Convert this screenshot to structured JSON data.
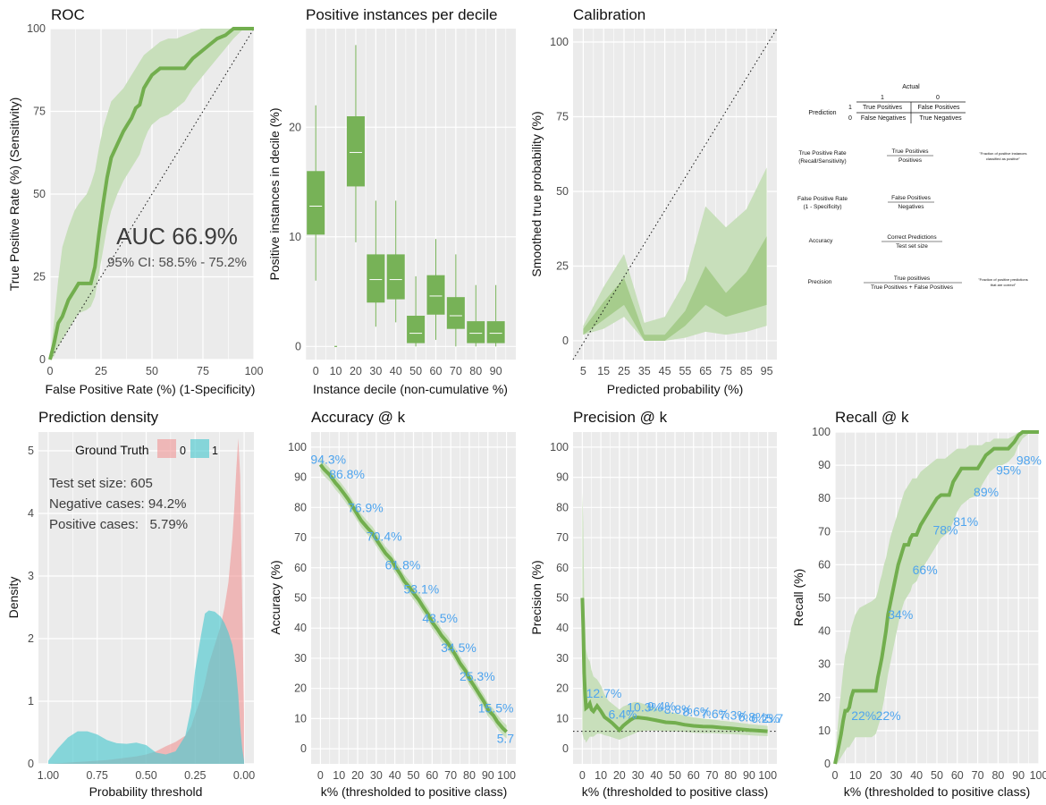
{
  "colors": {
    "panel": "#ebebeb",
    "grid": "#ffffff",
    "line": "#72ae4e",
    "band": "#c8dfbb",
    "band2": "#a6cc8c",
    "box": "#77b257",
    "label": "#4ea4ee",
    "neg": "#f08d8d",
    "pos": "#4ec9cf"
  },
  "roc": {
    "title": "ROC",
    "xlabel": "False Positive Rate (%)     (1-Specificity)",
    "ylabel": "True Positive Rate (%)     (Sensitivity)",
    "auc_text": "AUC 66.9%",
    "ci_text": "95% CI: 58.5% - 75.2%",
    "xticks": [
      "0",
      "25",
      "50",
      "75",
      "100"
    ],
    "yticks": [
      "0",
      "25",
      "50",
      "75",
      "100"
    ],
    "chart_data": {
      "type": "line",
      "x": [
        0,
        2,
        4,
        6,
        9,
        12,
        14,
        18,
        20,
        22,
        24,
        26,
        28,
        30,
        33,
        36,
        38,
        40,
        42,
        44,
        46,
        48,
        50,
        54,
        58,
        62,
        66,
        70,
        74,
        78,
        82,
        86,
        90,
        95,
        100
      ],
      "y": [
        0,
        5,
        11,
        13,
        18,
        21,
        23,
        23,
        23,
        28,
        38,
        47,
        55,
        61,
        65,
        69,
        71,
        73,
        76,
        77,
        82,
        84,
        86,
        88,
        88,
        88,
        88,
        91,
        93,
        95,
        97,
        98,
        100,
        100,
        100
      ],
      "upper": [
        0,
        12,
        24,
        34,
        40,
        45,
        47,
        50,
        53,
        57,
        64,
        70,
        74,
        78,
        80,
        82,
        84,
        86,
        88,
        90,
        92,
        93,
        94,
        96,
        97,
        97,
        98,
        99,
        100,
        100,
        100,
        100,
        100,
        100,
        100
      ],
      "lower": [
        0,
        1,
        4,
        6,
        9,
        12,
        14,
        15,
        16,
        19,
        26,
        33,
        40,
        45,
        50,
        54,
        56,
        58,
        60,
        62,
        66,
        69,
        71,
        73,
        74,
        76,
        78,
        82,
        85,
        88,
        91,
        94,
        97,
        100,
        100
      ]
    }
  },
  "decile": {
    "title": "Positive instances per decile",
    "xlabel": "Instance decile (non-cumulative %)",
    "ylabel": "Positive instances in decile (%)",
    "xticks": [
      "0",
      "10",
      "20",
      "30",
      "40",
      "50",
      "60",
      "70",
      "80",
      "90"
    ],
    "yticks": [
      "0",
      "10",
      "20"
    ],
    "chart_data": {
      "type": "box",
      "categories": [
        "0",
        "10",
        "20",
        "30",
        "40",
        "50",
        "60",
        "70",
        "80",
        "90"
      ],
      "median": [
        12.8,
        0,
        17.7,
        6.1,
        6.1,
        1.2,
        4.6,
        2.8,
        1.2,
        1.2
      ],
      "q1": [
        10.2,
        0,
        14.6,
        4.0,
        4.3,
        0.3,
        2.9,
        1.6,
        0.3,
        0.3
      ],
      "q3": [
        16.0,
        0,
        21.0,
        8.4,
        8.4,
        2.8,
        6.5,
        4.5,
        2.3,
        2.3
      ],
      "lo": [
        6.0,
        0,
        9.5,
        1.8,
        2.2,
        0,
        0.6,
        0,
        0,
        0
      ],
      "hi": [
        22.0,
        0,
        27.5,
        13.3,
        13.3,
        6.4,
        9.8,
        8.4,
        5.6,
        5.6
      ]
    }
  },
  "calibration": {
    "title": "Calibration",
    "xlabel": "Predicted probability (%)",
    "ylabel": "Smoothed true probability (%)",
    "xticks": [
      "5",
      "15",
      "25",
      "35",
      "45",
      "55",
      "65",
      "75",
      "85",
      "95"
    ],
    "yticks": [
      "0",
      "25",
      "50",
      "75",
      "100"
    ],
    "chart_data": {
      "type": "area",
      "x": [
        5,
        15,
        25,
        35,
        45,
        55,
        65,
        75,
        85,
        95
      ],
      "outer_lo": [
        2,
        4,
        8,
        0,
        0,
        1,
        3,
        2,
        3,
        5
      ],
      "outer_hi": [
        5,
        18,
        29,
        6,
        8,
        20,
        45,
        38,
        44,
        58
      ],
      "inner_lo": [
        2,
        7,
        12,
        0,
        0,
        5,
        12,
        8,
        10,
        12
      ],
      "inner_hi": [
        4,
        13,
        21,
        2,
        2,
        10,
        25,
        16,
        23,
        35
      ]
    }
  },
  "table": {
    "actual": "Actual",
    "h1": "1",
    "h0": "0",
    "prediction": "Prediction",
    "r1": "1",
    "r0": "0",
    "tp": "True Positives",
    "fp": "False Positives",
    "fn": "False Negatives",
    "tn": "True Negatives",
    "tpr_label1": "True Positive Rate",
    "tpr_label2": "(Recall/Sensitivity)",
    "tpr_num": "True Positives",
    "tpr_den": "Positives",
    "tpr_note1": "\"Fraction of positive instances",
    "tpr_note2": "classified as positive\"",
    "fpr_label1": "False Positive Rate",
    "fpr_label2": "(1 - Specificity)",
    "fpr_num": "False Positives",
    "fpr_den": "Negatives",
    "acc_label": "Accuracy",
    "acc_num": "Correct Predictions",
    "acc_den": "Test set size",
    "prec_label": "Precision",
    "prec_num": "True positives",
    "prec_den": "True Positives + False Positives",
    "prec_note1": "\"Fraction of positive predictions",
    "prec_note2": "that are correct\""
  },
  "density": {
    "title": "Prediction density",
    "xlabel": "Probability threshold",
    "ylabel": "Density",
    "legend_title": "Ground Truth",
    "legend_0": "0",
    "legend_1": "1",
    "stat1": "Test set size: 605",
    "stat2": "Negative cases: 94.2%",
    "stat3": "Positive cases:   5.79%",
    "xticks": [
      "1.00",
      "0.75",
      "0.50",
      "0.25",
      "0.00"
    ],
    "yticks": [
      "0",
      "1",
      "2",
      "3",
      "4",
      "5"
    ],
    "chart_data": {
      "type": "area",
      "x": [
        1.0,
        0.95,
        0.9,
        0.85,
        0.8,
        0.75,
        0.7,
        0.65,
        0.6,
        0.55,
        0.5,
        0.45,
        0.4,
        0.35,
        0.3,
        0.27,
        0.25,
        0.22,
        0.2,
        0.18,
        0.15,
        0.12,
        0.1,
        0.08,
        0.06,
        0.05,
        0.04,
        0.03,
        0.02,
        0.01,
        0.0
      ],
      "neg": [
        0,
        0.01,
        0.02,
        0.03,
        0.04,
        0.05,
        0.06,
        0.08,
        0.1,
        0.12,
        0.15,
        0.2,
        0.28,
        0.35,
        0.45,
        0.6,
        0.8,
        1.05,
        1.3,
        1.6,
        1.9,
        2.2,
        2.5,
        2.9,
        3.6,
        4.1,
        4.7,
        5.2,
        4.6,
        2.6,
        0.8
      ],
      "pos": [
        0.05,
        0.25,
        0.42,
        0.52,
        0.52,
        0.47,
        0.38,
        0.33,
        0.32,
        0.34,
        0.3,
        0.18,
        0.15,
        0.2,
        0.45,
        0.9,
        1.5,
        2.05,
        2.4,
        2.45,
        2.43,
        2.35,
        2.25,
        2.1,
        1.9,
        1.7,
        1.45,
        1.1,
        0.6,
        0.25,
        0.05
      ]
    }
  },
  "accuracy": {
    "title": "Accuracy @ k",
    "xlabel": "k% (thresholded to positive class)",
    "ylabel": "Accuracy (%)",
    "xticks": [
      "0",
      "10",
      "20",
      "30",
      "40",
      "50",
      "60",
      "70",
      "80",
      "90",
      "100"
    ],
    "yticks": [
      "0",
      "10",
      "20",
      "30",
      "40",
      "50",
      "60",
      "70",
      "80",
      "90",
      "100"
    ],
    "labels": [
      "94.3%",
      "86.8%",
      "76.9%",
      "70.4%",
      "61.8%",
      "53.1%",
      "43.5%",
      "34.5%",
      "25.3%",
      "15.5%",
      "5.7"
    ],
    "chart_data": {
      "type": "line",
      "x": [
        0,
        2,
        5,
        8,
        10,
        13,
        15,
        18,
        20,
        22,
        25,
        28,
        30,
        33,
        35,
        38,
        40,
        43,
        45,
        48,
        50,
        53,
        55,
        58,
        60,
        63,
        65,
        68,
        70,
        73,
        75,
        78,
        80,
        83,
        85,
        88,
        90,
        93,
        95,
        98,
        100
      ],
      "y": [
        94.2,
        92.6,
        90.8,
        88.2,
        86.8,
        84.3,
        82.6,
        79.6,
        77.6,
        75.6,
        73.4,
        71.4,
        69.4,
        66.6,
        64.8,
        62.8,
        60.6,
        57.8,
        55.6,
        53.4,
        51.6,
        49.2,
        47.2,
        44.4,
        42.0,
        39.5,
        37.6,
        35.4,
        33.6,
        30.6,
        28.4,
        25.8,
        23.2,
        20.4,
        18.4,
        15.5,
        13.0,
        11.0,
        9.0,
        6.8,
        5.6
      ]
    }
  },
  "precision": {
    "title": "Precision @ k",
    "xlabel": "k% (thresholded to positive class)",
    "ylabel": "Precision (%)",
    "xticks": [
      "0",
      "10",
      "20",
      "30",
      "40",
      "50",
      "60",
      "70",
      "80",
      "90",
      "100"
    ],
    "yticks": [
      "0",
      "10",
      "20",
      "30",
      "40",
      "50",
      "60",
      "70",
      "80",
      "90",
      "100"
    ],
    "labels": [
      "12.7%",
      "6.4%",
      "10.3%",
      "9.4%",
      "8.8%",
      "8.6%",
      "7.6%",
      "7.3%",
      "6.8%",
      "6.2%",
      "5.7"
    ],
    "chart_data": {
      "type": "line",
      "x": [
        0,
        0.5,
        1,
        1.5,
        2,
        3,
        4,
        5,
        6,
        8,
        10,
        12,
        14,
        16,
        18,
        20,
        22,
        24,
        26,
        28,
        30,
        35,
        40,
        45,
        50,
        55,
        60,
        65,
        70,
        75,
        80,
        85,
        90,
        95,
        100
      ],
      "y": [
        50,
        40,
        25,
        18,
        13.5,
        14,
        15,
        13,
        12.4,
        14.2,
        12.5,
        10.5,
        9.6,
        8.6,
        7.4,
        6.2,
        7.6,
        8.6,
        9.6,
        10.3,
        10.4,
        10.0,
        9.4,
        8.8,
        8.6,
        8.0,
        7.6,
        7.4,
        7.3,
        7.0,
        6.8,
        6.5,
        6.2,
        6.0,
        5.8
      ],
      "upper": [
        85,
        75,
        50,
        40,
        33,
        30,
        29,
        26,
        24,
        23,
        21,
        18,
        16,
        15,
        14,
        13,
        14,
        14.5,
        15,
        15.5,
        15.5,
        14.5,
        13.4,
        12.4,
        11.8,
        11.0,
        10.4,
        10.0,
        9.7,
        9.3,
        9.0,
        8.6,
        8.2,
        7.9,
        7.6
      ],
      "lower": [
        5,
        4,
        3,
        3,
        2,
        3,
        4,
        4,
        4,
        5,
        5,
        4.5,
        4.2,
        3.8,
        3.4,
        3.0,
        3.5,
        4.0,
        4.5,
        5.0,
        5.6,
        6.0,
        6.0,
        5.8,
        5.8,
        5.6,
        5.3,
        5.2,
        5.2,
        5.0,
        4.9,
        4.7,
        4.5,
        4.3,
        4.2
      ],
      "baseline": 5.79
    }
  },
  "recall": {
    "title": "Recall @ k",
    "xlabel": "k% (thresholded to positive class)",
    "ylabel": "Recall (%)",
    "xticks": [
      "0",
      "10",
      "20",
      "30",
      "40",
      "50",
      "60",
      "70",
      "80",
      "90",
      "100"
    ],
    "yticks": [
      "0",
      "10",
      "20",
      "30",
      "40",
      "50",
      "60",
      "70",
      "80",
      "90",
      "100"
    ],
    "labels": [
      "22%",
      "22%",
      "34%",
      "66%",
      "78%",
      "81%",
      "89%",
      "95%",
      "98%"
    ],
    "chart_data": {
      "type": "line",
      "x": [
        0,
        1,
        2,
        3,
        4,
        5,
        6,
        7,
        8,
        9,
        10,
        12,
        15,
        18,
        20,
        21,
        22,
        23,
        24,
        25,
        26,
        27,
        28,
        29,
        30,
        31,
        32,
        33,
        34,
        35,
        36,
        37,
        38,
        40,
        42,
        44,
        46,
        48,
        50,
        52,
        54,
        56,
        58,
        60,
        62,
        64,
        66,
        70,
        72,
        74,
        76,
        78,
        80,
        82,
        85,
        88,
        90,
        92,
        94,
        96,
        98,
        100
      ],
      "y": [
        0,
        3,
        6,
        9,
        13,
        16,
        16,
        17,
        20,
        22,
        22,
        22,
        22,
        22,
        22,
        26,
        29,
        32,
        36,
        40,
        45,
        48,
        51,
        54,
        57,
        60,
        62,
        64,
        66,
        66,
        66,
        68,
        69,
        69,
        72,
        74,
        76,
        78,
        80,
        81,
        81,
        81,
        85,
        87,
        89,
        89,
        89,
        89,
        91,
        93,
        94,
        95,
        95,
        95,
        95,
        97,
        99,
        100,
        100,
        100,
        100,
        100
      ],
      "upper": [
        0,
        9,
        16,
        22,
        28,
        33,
        35,
        38,
        41,
        43,
        45,
        47,
        48,
        49,
        50,
        52,
        55,
        57,
        60,
        62,
        65,
        68,
        70,
        72,
        74,
        76,
        78,
        80,
        82,
        83,
        84,
        85,
        86,
        86,
        88,
        89,
        90,
        91,
        92,
        92,
        92,
        93,
        94,
        95,
        95,
        95,
        96,
        96,
        96,
        97,
        97,
        98,
        98,
        98,
        98,
        99,
        100,
        100,
        100,
        100,
        100,
        100
      ],
      "lower": [
        0,
        0,
        1,
        2,
        3,
        4,
        5,
        5,
        6,
        7,
        8,
        8,
        8,
        8,
        9,
        11,
        13,
        16,
        19,
        23,
        27,
        30,
        33,
        36,
        39,
        42,
        45,
        47,
        49,
        50,
        51,
        52,
        54,
        55,
        58,
        60,
        62,
        64,
        66,
        68,
        69,
        70,
        73,
        76,
        78,
        79,
        80,
        81,
        84,
        86,
        88,
        89,
        90,
        90,
        91,
        93,
        96,
        98,
        99,
        100,
        100,
        100
      ]
    }
  }
}
